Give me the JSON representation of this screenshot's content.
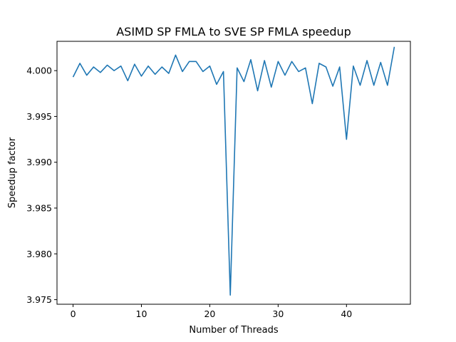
{
  "chart_data": {
    "type": "line",
    "title": "ASIMD SP FMLA to SVE SP FMLA speedup",
    "xlabel": "Number of Threads",
    "ylabel": "Speedup factor",
    "xlim": [
      -2.35,
      49.35
    ],
    "ylim": [
      3.9745,
      4.0032
    ],
    "xticks": [
      0,
      10,
      20,
      30,
      40
    ],
    "xtick_labels": [
      "0",
      "10",
      "20",
      "30",
      "40"
    ],
    "yticks": [
      3.975,
      3.98,
      3.985,
      3.99,
      3.995,
      4.0
    ],
    "ytick_labels": [
      "3.975",
      "3.980",
      "3.985",
      "3.990",
      "3.995",
      "4.000"
    ],
    "grid": false,
    "legend": "none",
    "color": "#1f77b4",
    "series": [
      {
        "x": [
          0,
          1,
          2,
          3,
          4,
          5,
          6,
          7,
          8,
          9,
          10,
          11,
          12,
          13,
          14,
          15,
          16,
          17,
          18,
          19,
          20,
          21,
          22,
          23,
          24,
          25,
          26,
          27,
          28,
          29,
          30,
          31,
          32,
          33,
          34,
          35,
          36,
          37,
          38,
          39,
          40,
          41,
          42,
          43,
          44,
          45,
          46,
          47
        ],
        "values": [
          3.9993,
          4.0008,
          3.9995,
          4.0004,
          3.9998,
          4.0006,
          4.0,
          4.0005,
          3.9989,
          4.0007,
          3.9994,
          4.0005,
          3.9996,
          4.0004,
          3.9997,
          4.0017,
          3.9999,
          4.001,
          4.001,
          3.9999,
          4.0005,
          3.9985,
          3.9999,
          3.9755,
          4.0003,
          3.9988,
          4.0012,
          3.9978,
          4.0011,
          3.9982,
          4.001,
          3.9995,
          4.001,
          3.9999,
          4.0003,
          3.9964,
          4.0008,
          4.0004,
          3.9983,
          4.0004,
          3.9925,
          4.0005,
          3.9984,
          4.0011,
          3.9984,
          4.0009,
          3.9984,
          4.0026
        ]
      }
    ]
  }
}
